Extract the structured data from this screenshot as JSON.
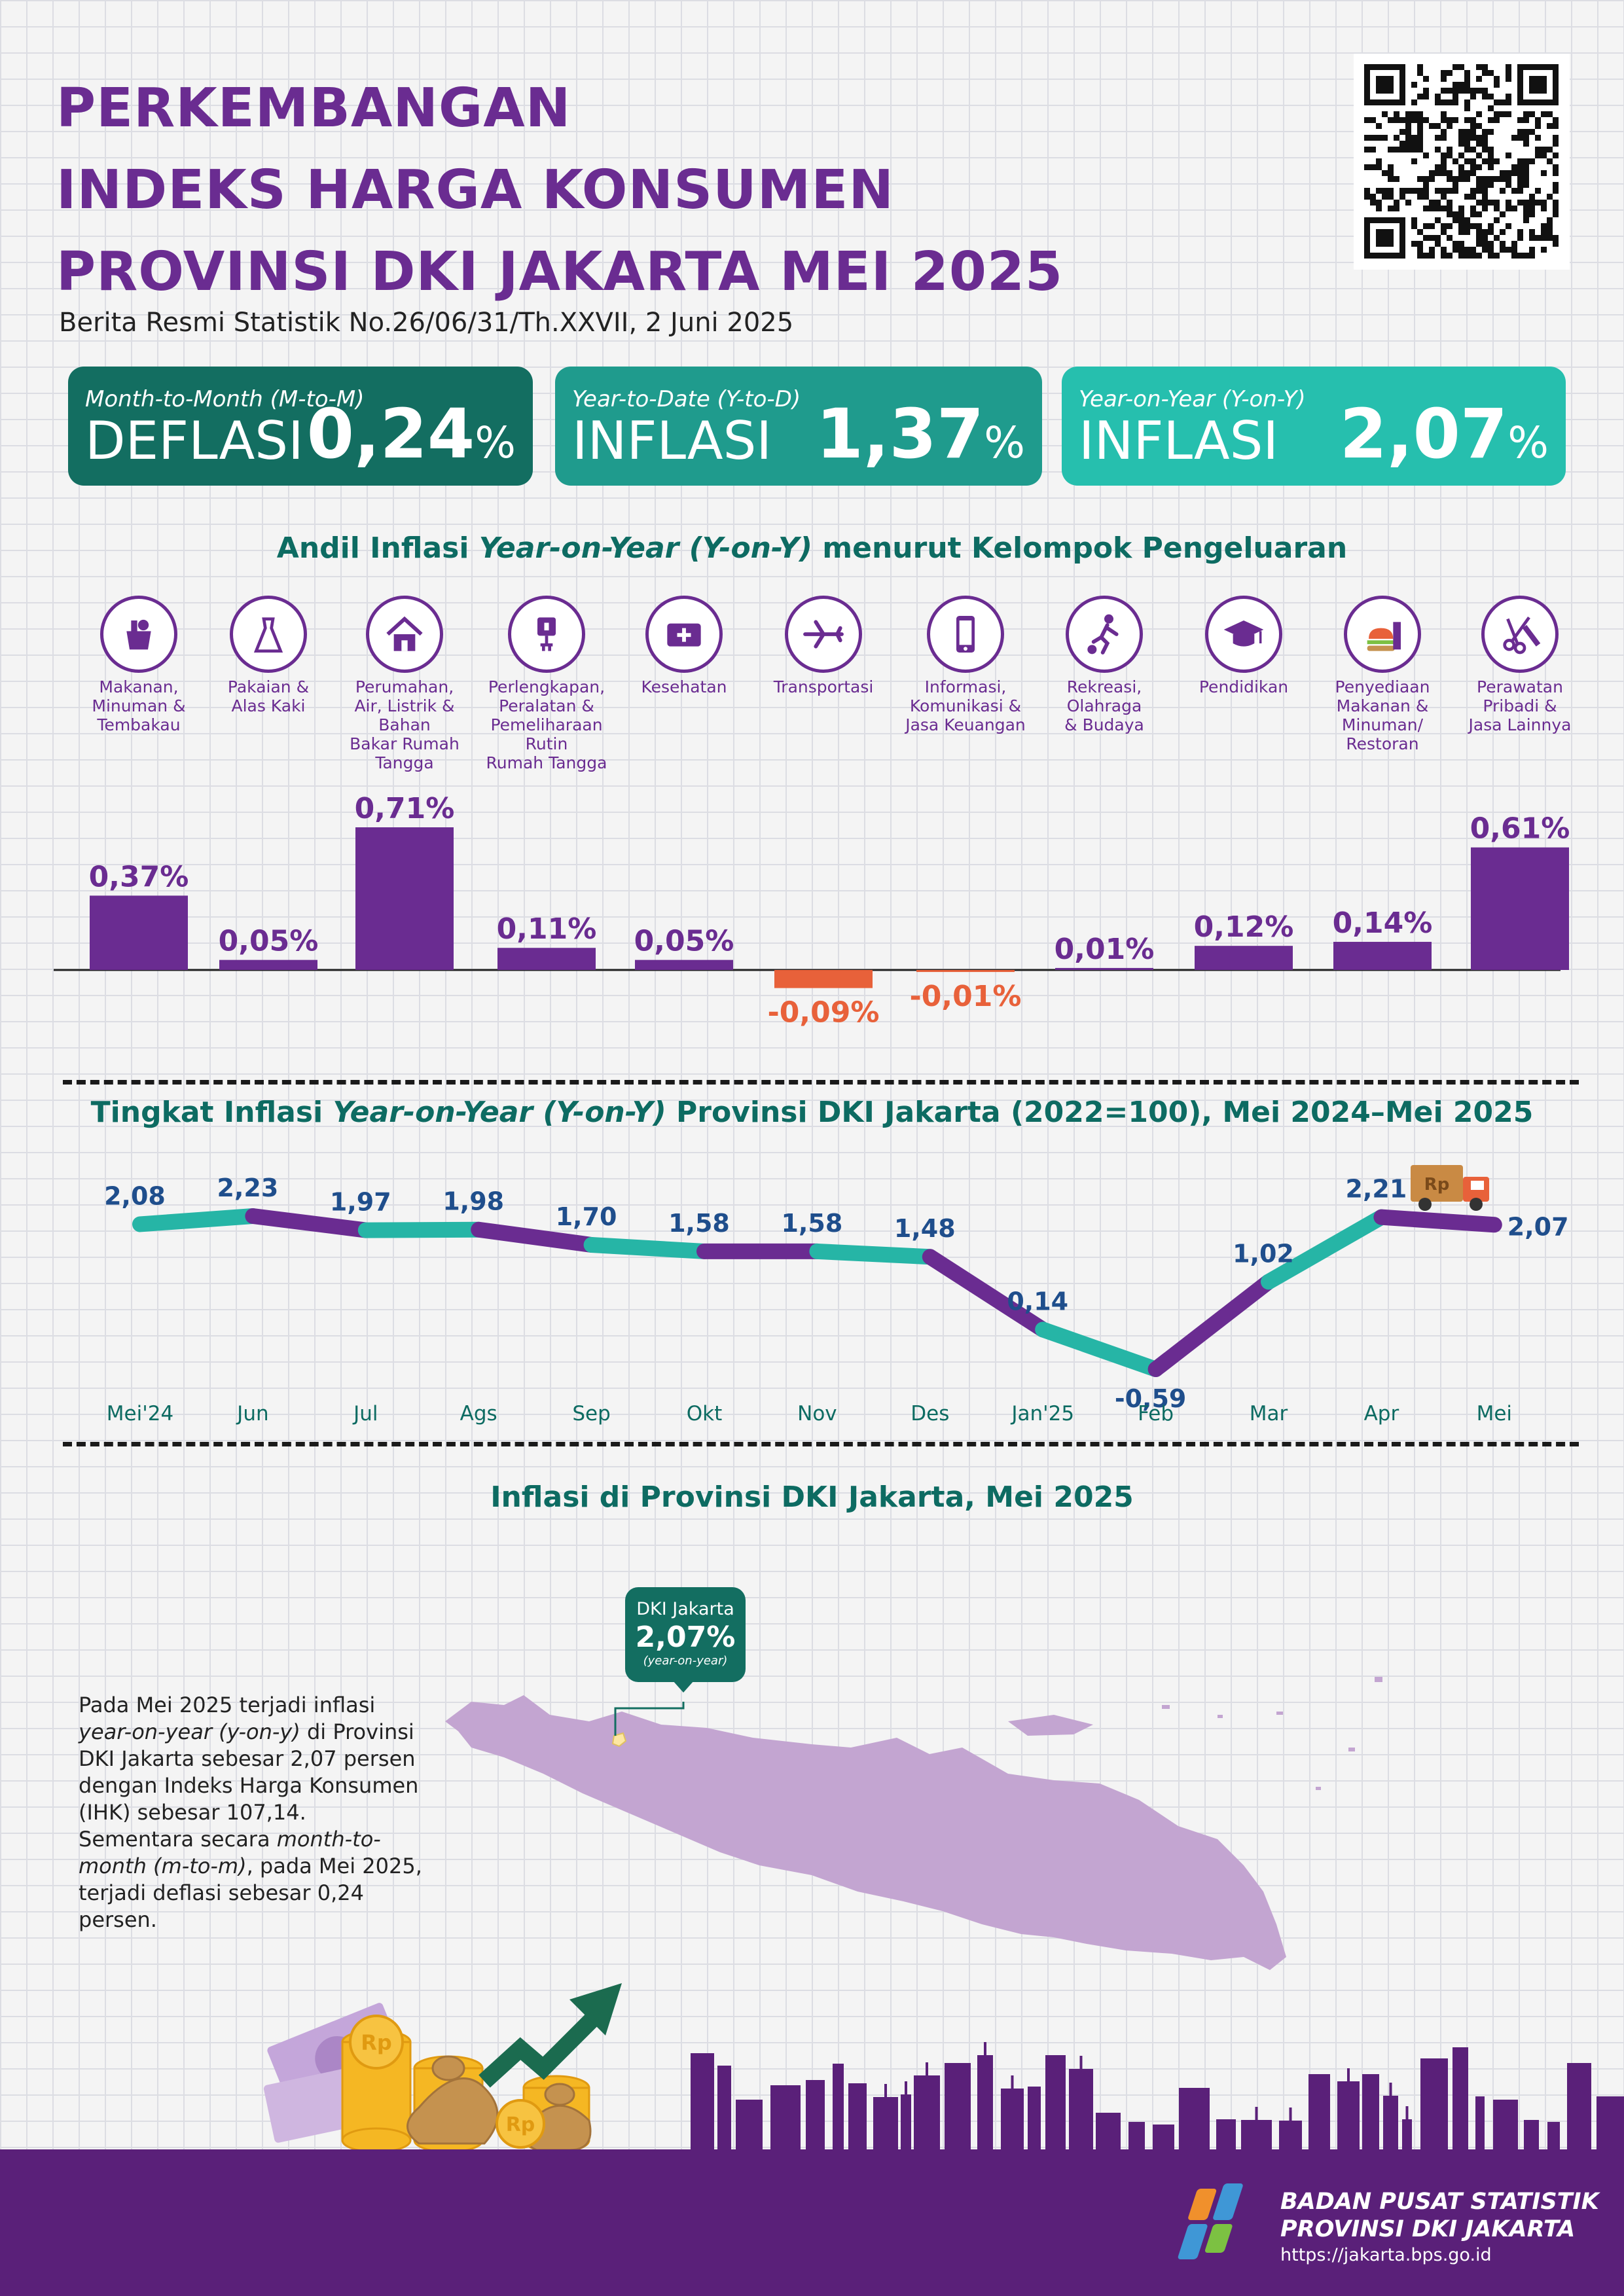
{
  "header": {
    "title_line1": "PERKEMBANGAN",
    "title_line2": "INDEKS HARGA KONSUMEN",
    "title_line3": "PROVINSI DKI JAKARTA MEI 2025",
    "subtitle": "Berita Resmi Statistik No.26/06/31/Th.XXVII, 2 Juni 2025"
  },
  "summary": [
    {
      "label": "Month-to-Month (M-to-M)",
      "kind": "DEFLASI",
      "value": "0,24",
      "unit": "%",
      "color": "#136e61"
    },
    {
      "label": "Year-to-Date (Y-to-D)",
      "kind": "INFLASI",
      "value": "1,37",
      "unit": "%",
      "color": "#1f9b8d"
    },
    {
      "label": "Year-on-Year (Y-on-Y)",
      "kind": "INFLASI",
      "value": "2,07",
      "unit": "%",
      "color": "#26bfae"
    }
  ],
  "section1": {
    "title_pre": "Andil Inflasi ",
    "title_em": "Year-on-Year (Y-on-Y)",
    "title_post": " menurut Kelompok Pengeluaran"
  },
  "section2": {
    "title_pre": "Tingkat Inflasi ",
    "title_em": "Year-on-Year (Y-on-Y)",
    "title_post": " Provinsi DKI Jakarta (2022=100), Mei 2024–Mei 2025"
  },
  "section3": {
    "title": "Inflasi di Provinsi DKI Jakarta, Mei 2025"
  },
  "map_callout": {
    "region": "DKI Jakarta",
    "value": "2,07%",
    "note": "(year-on-year)"
  },
  "paragraph": {
    "p1": "Pada Mei 2025 terjadi inflasi ",
    "p2": "year-on-year (y-on-y)",
    "p3": " di Provinsi DKI Jakarta sebesar 2,07 persen dengan Indeks Harga Konsumen (IHK) sebesar 107,14. Sementara secara ",
    "p4": "month-to-month (m-to-m)",
    "p5": ", pada Mei 2025, terjadi deflasi sebesar 0,24 persen."
  },
  "footer": {
    "org_line1": "BADAN PUSAT STATISTIK",
    "org_line2": "PROVINSI DKI JAKARTA",
    "url": "https://jakarta.bps.go.id"
  },
  "colors": {
    "purple": "#6a2c91",
    "teal": "#26b5a6",
    "negative": "#e8613a",
    "footer": "#5a2079",
    "dark_teal": "#0d6b62"
  },
  "chart_data": [
    {
      "type": "bar",
      "categories": [
        {
          "name": "Makanan, Minuman & Tembakau",
          "lines": [
            "Makanan,",
            "Minuman &",
            "Tembakau"
          ],
          "icon": "food-basket-icon"
        },
        {
          "name": "Pakaian & Alas Kaki",
          "lines": [
            "Pakaian &",
            "Alas Kaki"
          ],
          "icon": "dress-icon"
        },
        {
          "name": "Perumahan, Air, Listrik & Bahan Bakar Rumah Tangga",
          "lines": [
            "Perumahan,",
            "Air, Listrik &",
            "Bahan",
            "Bakar Rumah",
            "Tangga"
          ],
          "icon": "house-icon"
        },
        {
          "name": "Perlengkapan, Peralatan & Pemeliharaan Rutin Rumah Tangga",
          "lines": [
            "Perlengkapan,",
            "Peralatan &",
            "Pemeliharaan",
            "Rutin",
            "Rumah Tangga"
          ],
          "icon": "plug-icon"
        },
        {
          "name": "Kesehatan",
          "lines": [
            "Kesehatan"
          ],
          "icon": "medical-kit-icon"
        },
        {
          "name": "Transportasi",
          "lines": [
            "Transportasi"
          ],
          "icon": "airplane-icon"
        },
        {
          "name": "Informasi, Komunikasi & Jasa Keuangan",
          "lines": [
            "Informasi,",
            "Komunikasi &",
            "Jasa Keuangan"
          ],
          "icon": "smartphone-icon"
        },
        {
          "name": "Rekreasi, Olahraga & Budaya",
          "lines": [
            "Rekreasi,",
            "Olahraga",
            "& Budaya"
          ],
          "icon": "football-player-icon"
        },
        {
          "name": "Pendidikan",
          "lines": [
            "Pendidikan"
          ],
          "icon": "graduation-cap-icon"
        },
        {
          "name": "Penyediaan Makanan & Minuman/ Restoran",
          "lines": [
            "Penyediaan",
            "Makanan &",
            "Minuman/",
            "Restoran"
          ],
          "icon": "fast-food-icon"
        },
        {
          "name": "Perawatan Pribadi & Jasa Lainnya",
          "lines": [
            "Perawatan",
            "Pribadi &",
            "Jasa Lainnya"
          ],
          "icon": "scissors-comb-icon"
        }
      ],
      "values": [
        0.37,
        0.05,
        0.71,
        0.11,
        0.05,
        -0.09,
        -0.01,
        0.01,
        0.12,
        0.14,
        0.61
      ],
      "labels": [
        "0,37%",
        "0,05%",
        "0,71%",
        "0,11%",
        "0,05%",
        "-0,09%",
        "-0,01%",
        "0,01%",
        "0,12%",
        "0,14%",
        "0,61%"
      ],
      "ylim": [
        -0.09,
        0.71
      ]
    },
    {
      "type": "line",
      "x": [
        "Mei'24",
        "Jun",
        "Jul",
        "Ags",
        "Sep",
        "Okt",
        "Nov",
        "Des",
        "Jan'25",
        "Feb",
        "Mar",
        "Apr",
        "Mei"
      ],
      "values": [
        2.08,
        2.23,
        1.97,
        1.98,
        1.7,
        1.58,
        1.58,
        1.48,
        0.14,
        -0.59,
        1.02,
        2.21,
        2.07
      ],
      "labels": [
        "2,08",
        "2,23",
        "1,97",
        "1,98",
        "1,70",
        "1,58",
        "1,58",
        "1,48",
        "0,14",
        "-0,59",
        "1,02",
        "2,21",
        "2,07"
      ],
      "ylim": [
        -0.59,
        2.23
      ]
    }
  ]
}
